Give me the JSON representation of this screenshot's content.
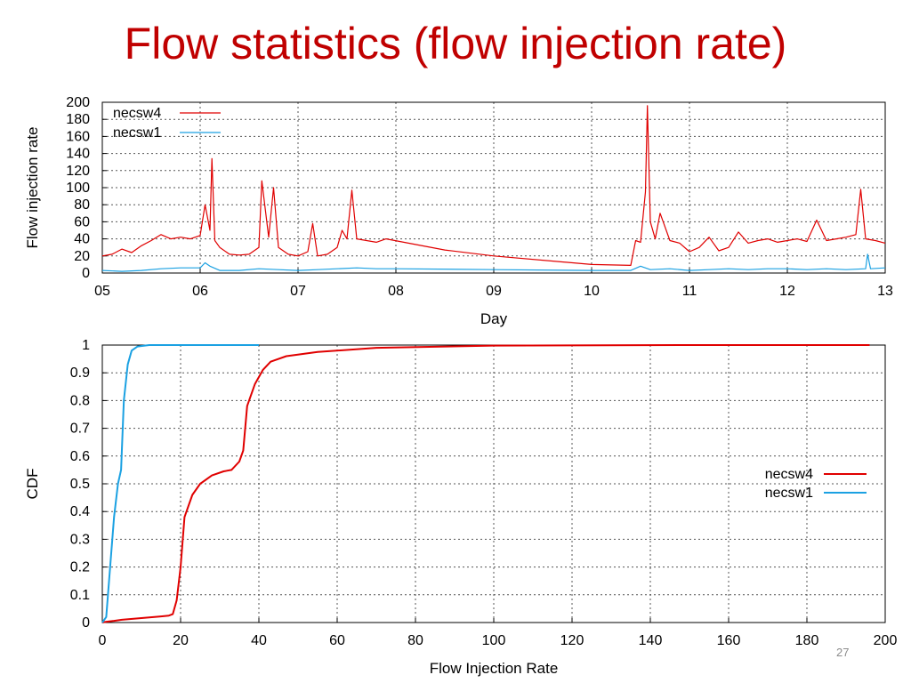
{
  "slide": {
    "title": "Flow statistics (flow injection rate)",
    "page_number": "27"
  },
  "colors": {
    "title": "#c00000",
    "necsw4": "#e00000",
    "necsw1": "#1ba1e2"
  },
  "chart_data": [
    {
      "type": "line",
      "xlabel": "Day",
      "ylabel": "Flow injection rate",
      "x_ticks": [
        "05",
        "06",
        "07",
        "08",
        "09",
        "10",
        "11",
        "12",
        "13"
      ],
      "y_ticks": [
        "0",
        "20",
        "40",
        "60",
        "80",
        "100",
        "120",
        "140",
        "160",
        "180",
        "200"
      ],
      "xlim": [
        5,
        13
      ],
      "ylim": [
        0,
        200
      ],
      "grid": true,
      "legend_position": "top-left",
      "series": [
        {
          "name": "necsw4",
          "color": "#e00000",
          "points": [
            [
              5.0,
              20
            ],
            [
              5.1,
              22
            ],
            [
              5.2,
              28
            ],
            [
              5.3,
              24
            ],
            [
              5.4,
              32
            ],
            [
              5.5,
              38
            ],
            [
              5.6,
              45
            ],
            [
              5.7,
              40
            ],
            [
              5.8,
              42
            ],
            [
              5.9,
              40
            ],
            [
              6.0,
              44
            ],
            [
              6.05,
              80
            ],
            [
              6.1,
              50
            ],
            [
              6.12,
              134
            ],
            [
              6.15,
              38
            ],
            [
              6.2,
              30
            ],
            [
              6.3,
              22
            ],
            [
              6.4,
              21
            ],
            [
              6.5,
              22
            ],
            [
              6.6,
              30
            ],
            [
              6.63,
              108
            ],
            [
              6.7,
              42
            ],
            [
              6.75,
              100
            ],
            [
              6.8,
              30
            ],
            [
              6.9,
              22
            ],
            [
              7.0,
              20
            ],
            [
              7.1,
              25
            ],
            [
              7.15,
              58
            ],
            [
              7.2,
              20
            ],
            [
              7.3,
              22
            ],
            [
              7.4,
              30
            ],
            [
              7.45,
              50
            ],
            [
              7.5,
              40
            ],
            [
              7.55,
              97
            ],
            [
              7.6,
              40
            ],
            [
              7.7,
              38
            ],
            [
              7.8,
              36
            ],
            [
              7.9,
              40
            ],
            [
              8.5,
              27
            ],
            [
              9.0,
              20
            ],
            [
              10.0,
              10
            ],
            [
              10.4,
              9
            ],
            [
              10.45,
              38
            ],
            [
              10.5,
              36
            ],
            [
              10.55,
              95
            ],
            [
              10.57,
              196
            ],
            [
              10.6,
              60
            ],
            [
              10.65,
              40
            ],
            [
              10.7,
              70
            ],
            [
              10.8,
              38
            ],
            [
              10.9,
              35
            ],
            [
              11.0,
              25
            ],
            [
              11.1,
              30
            ],
            [
              11.2,
              42
            ],
            [
              11.3,
              26
            ],
            [
              11.4,
              30
            ],
            [
              11.5,
              48
            ],
            [
              11.6,
              35
            ],
            [
              11.7,
              38
            ],
            [
              11.8,
              40
            ],
            [
              11.9,
              36
            ],
            [
              12.0,
              38
            ],
            [
              12.1,
              40
            ],
            [
              12.2,
              37
            ],
            [
              12.3,
              62
            ],
            [
              12.4,
              38
            ],
            [
              12.5,
              40
            ],
            [
              12.6,
              42
            ],
            [
              12.7,
              45
            ],
            [
              12.75,
              98
            ],
            [
              12.8,
              40
            ],
            [
              12.9,
              38
            ],
            [
              13.0,
              35
            ]
          ]
        },
        {
          "name": "necsw1",
          "color": "#1ba1e2",
          "points": [
            [
              5.0,
              3
            ],
            [
              5.2,
              2
            ],
            [
              5.4,
              3
            ],
            [
              5.6,
              5
            ],
            [
              5.8,
              6
            ],
            [
              6.0,
              6
            ],
            [
              6.05,
              12
            ],
            [
              6.1,
              8
            ],
            [
              6.2,
              3
            ],
            [
              6.4,
              3
            ],
            [
              6.6,
              5
            ],
            [
              6.8,
              4
            ],
            [
              7.0,
              3
            ],
            [
              7.2,
              4
            ],
            [
              7.4,
              5
            ],
            [
              7.6,
              6
            ],
            [
              7.8,
              5
            ],
            [
              8.0,
              5
            ],
            [
              9.0,
              4
            ],
            [
              10.0,
              3
            ],
            [
              10.4,
              3
            ],
            [
              10.5,
              8
            ],
            [
              10.6,
              4
            ],
            [
              10.8,
              5
            ],
            [
              11.0,
              3
            ],
            [
              11.2,
              4
            ],
            [
              11.4,
              5
            ],
            [
              11.6,
              4
            ],
            [
              11.8,
              5
            ],
            [
              12.0,
              5
            ],
            [
              12.2,
              4
            ],
            [
              12.4,
              5
            ],
            [
              12.6,
              4
            ],
            [
              12.8,
              5
            ],
            [
              12.82,
              22
            ],
            [
              12.85,
              5
            ],
            [
              13.0,
              6
            ]
          ]
        }
      ]
    },
    {
      "type": "line",
      "xlabel": "Flow Injection Rate",
      "ylabel": "CDF",
      "x_ticks": [
        "0",
        "20",
        "40",
        "60",
        "80",
        "100",
        "120",
        "140",
        "160",
        "180",
        "200"
      ],
      "y_ticks": [
        "0",
        "0.1",
        "0.2",
        "0.3",
        "0.4",
        "0.5",
        "0.6",
        "0.7",
        "0.8",
        "0.9",
        "1"
      ],
      "xlim": [
        0,
        200
      ],
      "ylim": [
        0,
        1
      ],
      "grid": true,
      "legend_position": "right",
      "series": [
        {
          "name": "necsw4",
          "color": "#e00000",
          "points": [
            [
              0,
              0
            ],
            [
              1,
              0.003
            ],
            [
              3,
              0.006
            ],
            [
              5,
              0.01
            ],
            [
              10,
              0.016
            ],
            [
              15,
              0.022
            ],
            [
              17,
              0.025
            ],
            [
              18,
              0.03
            ],
            [
              19,
              0.08
            ],
            [
              20,
              0.2
            ],
            [
              21,
              0.38
            ],
            [
              23,
              0.46
            ],
            [
              25,
              0.5
            ],
            [
              28,
              0.53
            ],
            [
              31,
              0.545
            ],
            [
              33,
              0.55
            ],
            [
              35,
              0.58
            ],
            [
              36,
              0.62
            ],
            [
              37,
              0.78
            ],
            [
              39,
              0.86
            ],
            [
              41,
              0.91
            ],
            [
              43,
              0.94
            ],
            [
              47,
              0.96
            ],
            [
              55,
              0.975
            ],
            [
              70,
              0.99
            ],
            [
              100,
              0.998
            ],
            [
              150,
              1.0
            ],
            [
              196,
              1.0
            ]
          ]
        },
        {
          "name": "necsw1",
          "color": "#1ba1e2",
          "points": [
            [
              0,
              0
            ],
            [
              1,
              0.02
            ],
            [
              2,
              0.2
            ],
            [
              3,
              0.38
            ],
            [
              4,
              0.5
            ],
            [
              4.8,
              0.55
            ],
            [
              5.5,
              0.8
            ],
            [
              6.5,
              0.93
            ],
            [
              7.5,
              0.98
            ],
            [
              9,
              0.995
            ],
            [
              12,
              1.0
            ],
            [
              40,
              1.0
            ]
          ]
        }
      ]
    }
  ]
}
